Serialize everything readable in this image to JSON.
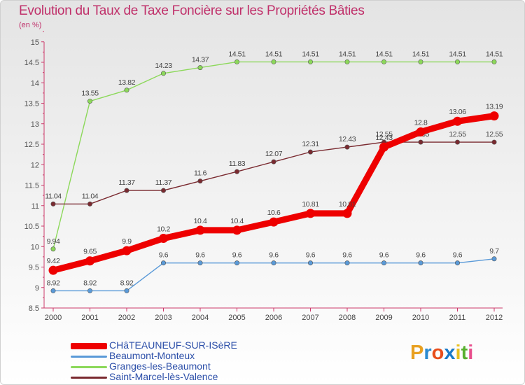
{
  "title": "Evolution du Taux de Taxe Foncière sur les Propriétés Bâties",
  "subtitle": "(en %)",
  "brand": {
    "letters": [
      "P",
      "r",
      "o",
      "x",
      "i",
      "t",
      "i"
    ],
    "colors": [
      "#e8a020",
      "#2a8ad0",
      "#e84e1c",
      "#1a7ac8",
      "#e8c020",
      "#58b030",
      "#e84e8c"
    ]
  },
  "chart_data": {
    "type": "line",
    "title": "Evolution du Taux de Taxe Foncière sur les Propriétés Bâties",
    "ylabel": "(en %)",
    "xlabel": "",
    "ylim": [
      8.5,
      15
    ],
    "yticks": [
      "8.5",
      "9",
      "9.5",
      "10",
      "10.5",
      "11",
      "11.5",
      "12",
      "12.5",
      "13",
      "13.5",
      "14",
      "14.5",
      "15"
    ],
    "categories": [
      "2000",
      "2001",
      "2002",
      "2003",
      "2004",
      "2005",
      "2006",
      "2007",
      "2008",
      "2009",
      "2010",
      "2011",
      "2012"
    ],
    "grid": false,
    "legend": "bottom-left",
    "series": [
      {
        "name": "Granges-les-Beaumont",
        "color": "#8cd85a",
        "thick": false,
        "values": [
          9.94,
          13.55,
          13.82,
          14.23,
          14.37,
          14.51,
          14.51,
          14.51,
          14.51,
          14.51,
          14.51,
          14.51,
          14.51
        ],
        "labels": [
          "9.94",
          "13.55",
          "13.82",
          "14.23",
          "14.37",
          "14.51",
          "14.51",
          "14.51",
          "14.51",
          "14.51",
          "14.51",
          "14.51",
          "14.51"
        ]
      },
      {
        "name": "Saint-Marcel-lès-Valence",
        "color": "#7a2a30",
        "thick": false,
        "values": [
          11.04,
          11.04,
          11.37,
          11.37,
          11.6,
          11.83,
          12.07,
          12.31,
          12.43,
          12.55,
          12.55,
          12.55,
          12.55
        ],
        "labels": [
          "11.04",
          "11.04",
          "11.37",
          "11.37",
          "11.6",
          "11.83",
          "12.07",
          "12.31",
          "12.43",
          "12.55",
          "12.55",
          "12.55",
          "12.55"
        ]
      },
      {
        "name": "Beaumont-Monteux",
        "color": "#5a9ad8",
        "thick": false,
        "values": [
          8.92,
          8.92,
          8.92,
          9.6,
          9.6,
          9.6,
          9.6,
          9.6,
          9.6,
          9.6,
          9.6,
          9.6,
          9.7
        ],
        "labels": [
          "8.92",
          "8.92",
          "8.92",
          "9.6",
          "9.6",
          "9.6",
          "9.6",
          "9.6",
          "9.6",
          "9.6",
          "9.6",
          "9.6",
          "9.7"
        ]
      },
      {
        "name": "CHâTEAUNEUF-SUR-ISèRE",
        "color": "#ee0000",
        "thick": true,
        "values": [
          9.42,
          9.65,
          9.9,
          10.2,
          10.4,
          10.4,
          10.6,
          10.81,
          10.81,
          12.43,
          12.8,
          13.06,
          13.19
        ],
        "labels": [
          "9.42",
          "9.65",
          "9.9",
          "10.2",
          "10.4",
          "10.4",
          "10.6",
          "10.81",
          "10.81",
          "12.43",
          "12.8",
          "13.06",
          "13.19"
        ]
      }
    ],
    "legend_order": [
      "CHâTEAUNEUF-SUR-ISèRE",
      "Beaumont-Monteux",
      "Granges-les-Beaumont",
      "Saint-Marcel-lès-Valence"
    ]
  }
}
